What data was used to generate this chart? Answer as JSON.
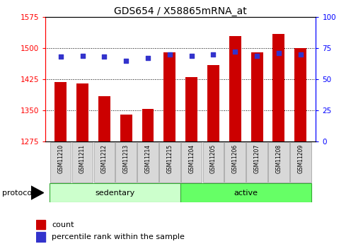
{
  "title": "GDS654 / X58865mRNA_at",
  "samples": [
    "GSM11210",
    "GSM11211",
    "GSM11212",
    "GSM11213",
    "GSM11214",
    "GSM11215",
    "GSM11204",
    "GSM11205",
    "GSM11206",
    "GSM11207",
    "GSM11208",
    "GSM11209"
  ],
  "counts": [
    1418,
    1415,
    1385,
    1340,
    1353,
    1490,
    1430,
    1460,
    1530,
    1490,
    1535,
    1500
  ],
  "percentiles": [
    68,
    69,
    68,
    65,
    67,
    70,
    69,
    70,
    72,
    69,
    71,
    70
  ],
  "groups": [
    "sedentary",
    "sedentary",
    "sedentary",
    "sedentary",
    "sedentary",
    "sedentary",
    "active",
    "active",
    "active",
    "active",
    "active",
    "active"
  ],
  "ylim_left": [
    1275,
    1575
  ],
  "ylim_right": [
    0,
    100
  ],
  "yticks_left": [
    1275,
    1350,
    1425,
    1500,
    1575
  ],
  "yticks_right": [
    0,
    25,
    50,
    75,
    100
  ],
  "bar_color": "#cc0000",
  "dot_color": "#3333cc",
  "bar_width": 0.55,
  "group_colors": {
    "sedentary": "#ccffcc",
    "active": "#66ff66"
  },
  "title_fontsize": 10,
  "tick_fontsize": 7.5,
  "sample_fontsize": 5.5,
  "group_fontsize": 8,
  "protocol_label": "protocol",
  "legend_count": "count",
  "legend_pct": "percentile rank within the sample",
  "legend_fontsize": 8
}
